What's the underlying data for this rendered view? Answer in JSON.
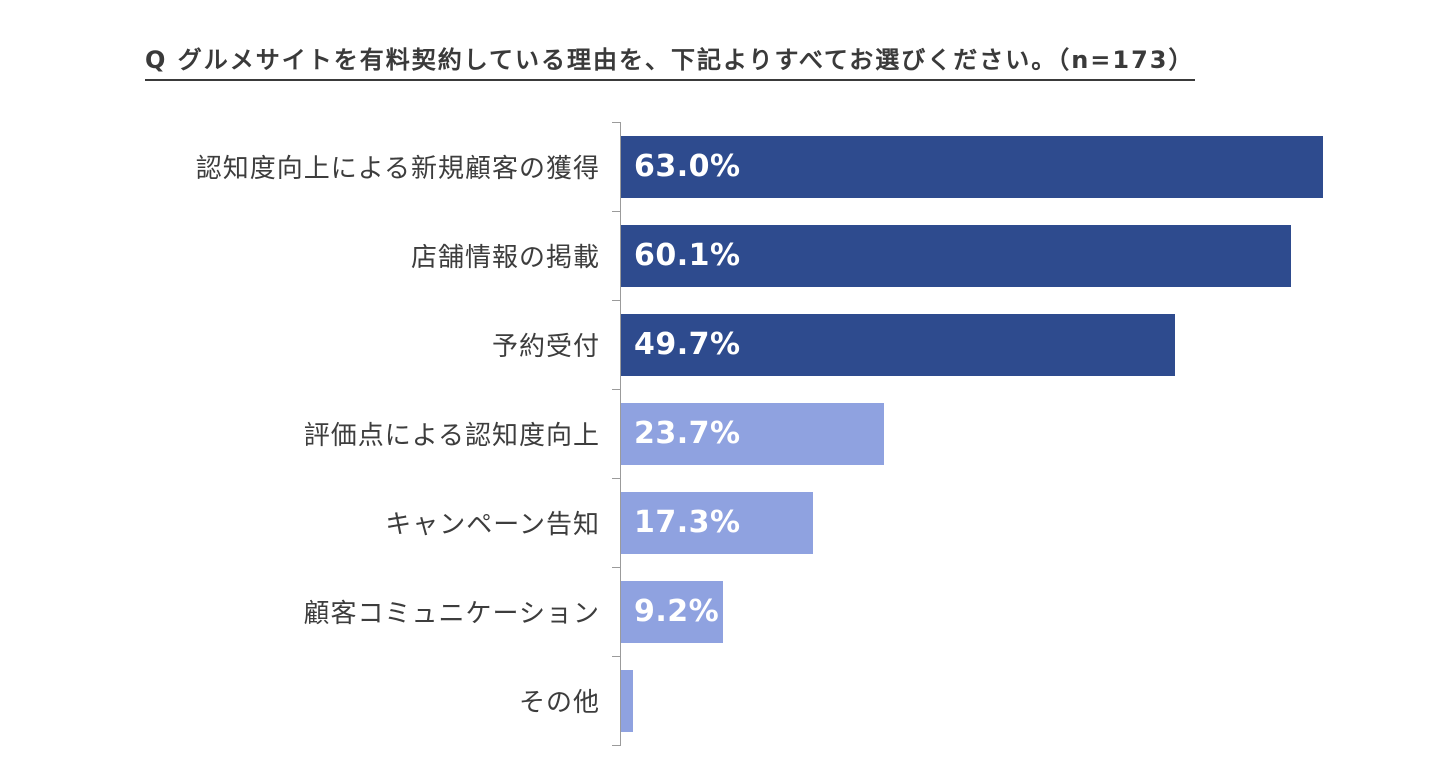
{
  "title": "Q グルメサイトを有料契約している理由を、下記よりすべてお選びください。（n=173）",
  "chart_data": {
    "type": "bar",
    "orientation": "horizontal",
    "title": "Q グルメサイトを有料契約している理由を、下記よりすべてお選びください。（n=173）",
    "sample_size": "n=173",
    "categories": [
      "認知度向上による新規顧客の獲得",
      "店舗情報の掲載",
      "予約受付",
      "評価点による認知度向上",
      "キャンペーン告知",
      "顧客コミュニケーション",
      "その他"
    ],
    "values": [
      63.0,
      60.1,
      49.7,
      23.7,
      17.3,
      9.2,
      1.2
    ],
    "data_labels": [
      "63.0%",
      "60.1%",
      "49.7%",
      "23.7%",
      "17.3%",
      "9.2%",
      ""
    ],
    "bar_colors": [
      "#2e4b8e",
      "#2e4b8e",
      "#2e4b8e",
      "#8fa2e0",
      "#8fa2e0",
      "#8fa2e0",
      "#8fa2e0"
    ],
    "xlabel": "",
    "ylabel": "",
    "xlim": [
      0,
      100
    ],
    "grid": false,
    "legend": false,
    "colors": {
      "dark_blue": "#2e4b8e",
      "light_blue": "#8fa2e0",
      "value_text": "#ffffff",
      "category_text": "#3d3d3d",
      "axis": "#9b9b9b",
      "background": "#ffffff"
    }
  }
}
